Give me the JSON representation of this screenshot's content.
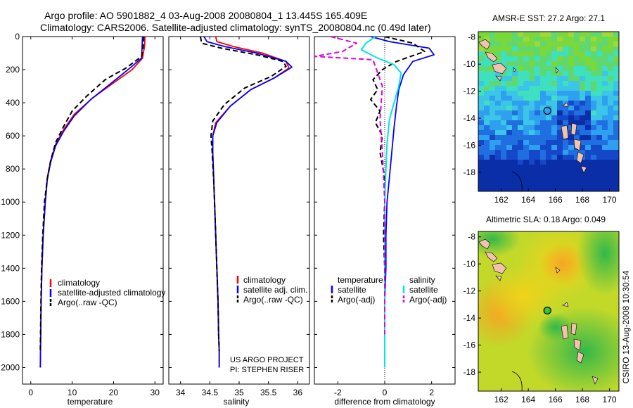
{
  "figure": {
    "title_line1": "Argo profile: AO 5901882_4 03-Aug-2008 20080804_1 13.445S 165.409E",
    "title_line2": "Climatology: CARS2006. Satellite-adjusted climatology: synTS_20080804.nc (0.49d later)",
    "credit": "CSIRO 13-Aug-2008 10:30:54",
    "colors": {
      "clim": "#ff0000",
      "sat": "#0000ff",
      "argo": "#000000",
      "sal_sat": "#00e5e5",
      "sal_argo": "#e000e0"
    }
  },
  "chart_data": [
    {
      "id": "temperature",
      "type": "line",
      "xlabel": "temperature",
      "ylabel": "",
      "xlim": [
        -2,
        32
      ],
      "ylim": [
        2100,
        0
      ],
      "xticks": [
        0,
        10,
        20,
        30
      ],
      "yticks": [
        0,
        200,
        400,
        600,
        800,
        1000,
        1200,
        1400,
        1600,
        1800,
        2000
      ],
      "legend": [
        "climatology",
        "satellite-adjusted climatology",
        "Argo(..raw -QC)"
      ],
      "series": [
        {
          "name": "climatology",
          "x": [
            27.6,
            27.5,
            27.0,
            24.5,
            20.0,
            15.0,
            10.5,
            8.0,
            6.0,
            4.8,
            4.0,
            3.5,
            3.0,
            2.7,
            2.5,
            2.4,
            2.35,
            2.3
          ],
          "y": [
            0,
            60,
            130,
            200,
            280,
            370,
            470,
            560,
            650,
            750,
            850,
            1000,
            1200,
            1400,
            1600,
            1800,
            1900,
            2000
          ]
        },
        {
          "name": "satellite-adjusted climatology",
          "x": [
            27.0,
            26.9,
            26.8,
            23.5,
            19.5,
            14.5,
            10.5,
            8.0,
            6.0,
            4.8,
            4.0,
            3.5,
            3.0,
            2.7,
            2.5,
            2.4,
            2.35,
            2.3
          ],
          "y": [
            0,
            60,
            130,
            200,
            280,
            380,
            480,
            570,
            660,
            760,
            860,
            1000,
            1200,
            1400,
            1600,
            1800,
            1900,
            2000
          ]
        },
        {
          "name": "Argo(..raw -QC)",
          "x": [
            27.3,
            27.2,
            26.8,
            23.0,
            18.0,
            13.5,
            10.0,
            7.8,
            6.0,
            4.8,
            4.0,
            3.3,
            2.9,
            2.6,
            2.45,
            2.35,
            2.3
          ],
          "y": [
            0,
            50,
            120,
            190,
            260,
            360,
            450,
            550,
            640,
            750,
            860,
            1000,
            1200,
            1400,
            1600,
            1800,
            1900
          ]
        }
      ]
    },
    {
      "id": "salinity",
      "type": "line",
      "xlabel": "salinity",
      "ylabel": "",
      "xlim": [
        33.8,
        36.2
      ],
      "ylim": [
        2100,
        0
      ],
      "xticks": [
        34,
        34.5,
        35,
        35.5,
        36
      ],
      "legend": [
        "climatology",
        "satellite adj. clim.",
        "Argo(..raw -QC)"
      ],
      "annotation": [
        "US ARGO PROJECT",
        "PI: STEPHEN RISER"
      ],
      "series": [
        {
          "name": "climatology",
          "x": [
            34.6,
            34.62,
            34.9,
            35.4,
            35.8,
            35.85,
            35.6,
            35.2,
            34.85,
            34.6,
            34.55,
            34.55,
            34.57,
            34.6,
            34.62,
            34.64,
            34.65,
            34.66,
            34.66
          ],
          "y": [
            0,
            30,
            60,
            100,
            150,
            190,
            250,
            320,
            420,
            520,
            600,
            700,
            900,
            1200,
            1400,
            1600,
            1800,
            1900,
            2000
          ]
        },
        {
          "name": "satellite adj. clim.",
          "x": [
            34.4,
            34.45,
            34.75,
            35.3,
            35.8,
            35.9,
            35.6,
            35.2,
            34.85,
            34.62,
            34.55,
            34.55,
            34.57,
            34.6,
            34.62,
            34.64,
            34.65,
            34.66,
            34.66
          ],
          "y": [
            0,
            30,
            60,
            100,
            150,
            185,
            250,
            320,
            420,
            520,
            600,
            700,
            900,
            1200,
            1400,
            1600,
            1800,
            1900,
            2000
          ]
        },
        {
          "name": "Argo(..raw -QC)",
          "x": [
            34.34,
            34.36,
            34.7,
            35.3,
            35.75,
            35.8,
            35.55,
            35.1,
            34.75,
            34.55,
            34.52,
            34.54,
            34.57,
            34.6,
            34.62,
            34.64,
            34.65,
            34.66
          ],
          "y": [
            0,
            40,
            70,
            110,
            150,
            180,
            240,
            310,
            410,
            510,
            600,
            700,
            900,
            1200,
            1400,
            1600,
            1800,
            1900
          ]
        }
      ]
    },
    {
      "id": "difference",
      "type": "line",
      "xlabel": "difference from climatology",
      "ylabel": "",
      "xlim": [
        -3,
        3
      ],
      "ylim": [
        2100,
        0
      ],
      "xticks": [
        -2,
        0,
        2
      ],
      "legend_headers": [
        "temperature",
        "salinity"
      ],
      "legend": [
        "satellite",
        "Argo(-adj)",
        "satellite",
        "Argo(-adj)"
      ],
      "series": [
        {
          "name": "temperature satellite",
          "x": [
            -0.6,
            0.2,
            1.9,
            2.1,
            1.2,
            0.8,
            0.6,
            0.5,
            0.4,
            0.3,
            0.2,
            0.1,
            0.05,
            0.05,
            0.0,
            0.0,
            0.0,
            0.0
          ],
          "y": [
            0,
            30,
            70,
            110,
            150,
            230,
            320,
            420,
            550,
            700,
            850,
            1000,
            1200,
            1400,
            1600,
            1800,
            1900,
            2000
          ]
        },
        {
          "name": "temperature Argo(-adj)",
          "x": [
            0.0,
            1.2,
            1.7,
            0.5,
            -0.1,
            -0.5,
            -0.3,
            -0.6,
            -0.2,
            -0.4,
            -0.1,
            -0.2,
            0.0,
            0.0,
            -0.05,
            0.0,
            0.0
          ],
          "y": [
            0,
            40,
            90,
            150,
            200,
            260,
            320,
            380,
            450,
            520,
            600,
            700,
            850,
            1000,
            1200,
            1400,
            1600
          ]
        },
        {
          "name": "salinity satellite",
          "x": [
            -0.4,
            -0.8,
            -1.0,
            -0.3,
            0.4,
            0.7,
            0.6,
            0.4,
            0.2,
            0.1,
            0.05,
            0.0,
            0.0,
            0.0
          ],
          "y": [
            0,
            40,
            80,
            130,
            170,
            220,
            300,
            400,
            500,
            650,
            800,
            1000,
            1500,
            2000
          ]
        },
        {
          "name": "salinity Argo(-adj)",
          "x": [
            -2.3,
            -1.2,
            -1.8,
            -3.0,
            -0.5,
            -0.1,
            -0.2,
            -0.1,
            0.0,
            0.0,
            0.0
          ],
          "y": [
            0,
            40,
            90,
            120,
            140,
            300,
            500,
            700,
            1000,
            1400,
            1800
          ]
        }
      ]
    },
    {
      "id": "sst_map",
      "type": "heatmap",
      "title": "AMSR-E SST: 27.2 Argo: 27.1",
      "xlim": [
        160.3,
        170.7
      ],
      "ylim": [
        -19.4,
        -7.6
      ],
      "xticks": [
        162,
        164,
        166,
        168,
        170
      ],
      "yticks": [
        -8,
        -10,
        -12,
        -14,
        -16,
        -18
      ],
      "marker": {
        "lon": 165.409,
        "lat": -13.445
      }
    },
    {
      "id": "sla_map",
      "type": "heatmap",
      "title": "Altimetric SLA: 0.18 Argo: 0.049",
      "xlim": [
        160.3,
        170.7
      ],
      "ylim": [
        -19.4,
        -7.6
      ],
      "xticks": [
        162,
        164,
        166,
        168,
        170
      ],
      "yticks": [
        -8,
        -10,
        -12,
        -14,
        -16,
        -18
      ],
      "marker": {
        "lon": 165.409,
        "lat": -13.445
      }
    }
  ]
}
